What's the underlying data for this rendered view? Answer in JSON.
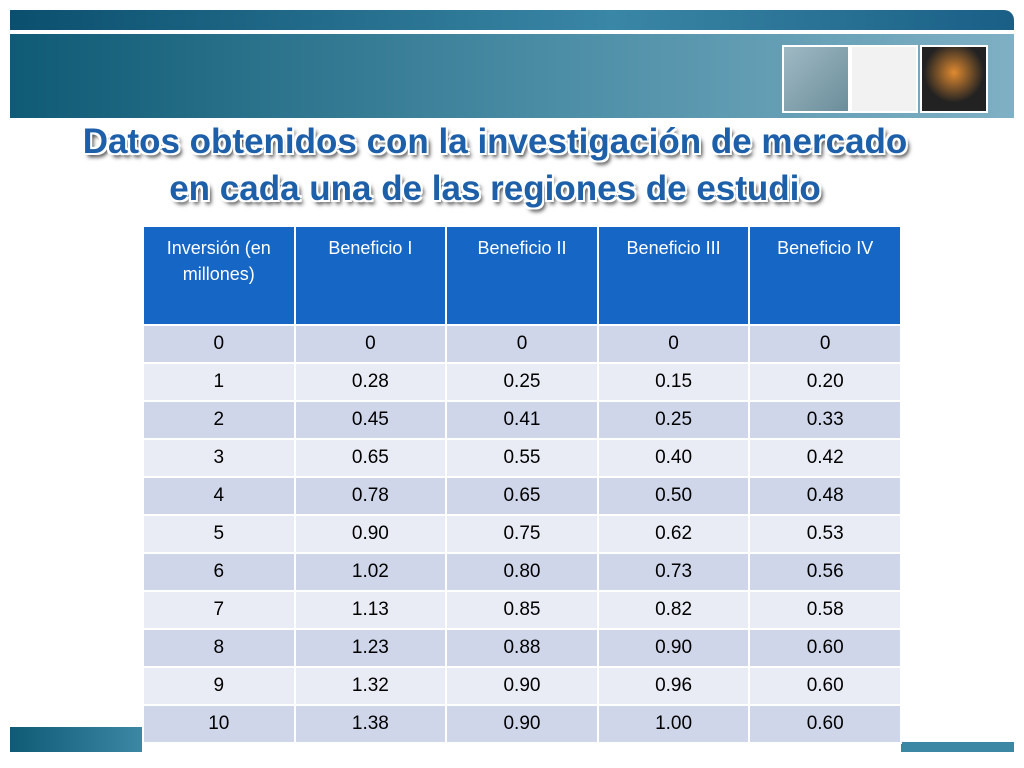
{
  "title_lines": [
    "Datos obtenidos con la investigación de mercado",
    "en cada una de las regiones de estudio"
  ],
  "table": {
    "header": [
      "Inversión (en millones)",
      "Beneficio I",
      "Beneficio II",
      "Beneficio III",
      "Beneficio IV"
    ],
    "rows": [
      [
        "0",
        "0",
        "0",
        "0",
        "0"
      ],
      [
        "1",
        "0.28",
        "0.25",
        "0.15",
        "0.20"
      ],
      [
        "2",
        "0.45",
        "0.41",
        "0.25",
        "0.33"
      ],
      [
        "3",
        "0.65",
        "0.55",
        "0.40",
        "0.42"
      ],
      [
        "4",
        "0.78",
        "0.65",
        "0.50",
        "0.48"
      ],
      [
        "5",
        "0.90",
        "0.75",
        "0.62",
        "0.53"
      ],
      [
        "6",
        "1.02",
        "0.80",
        "0.73",
        "0.56"
      ],
      [
        "7",
        "1.13",
        "0.85",
        "0.82",
        "0.58"
      ],
      [
        "8",
        "1.23",
        "0.88",
        "0.90",
        "0.60"
      ],
      [
        "9",
        "1.32",
        "0.90",
        "0.96",
        "0.60"
      ],
      [
        "10",
        "1.38",
        "0.90",
        "1.00",
        "0.60"
      ]
    ]
  }
}
